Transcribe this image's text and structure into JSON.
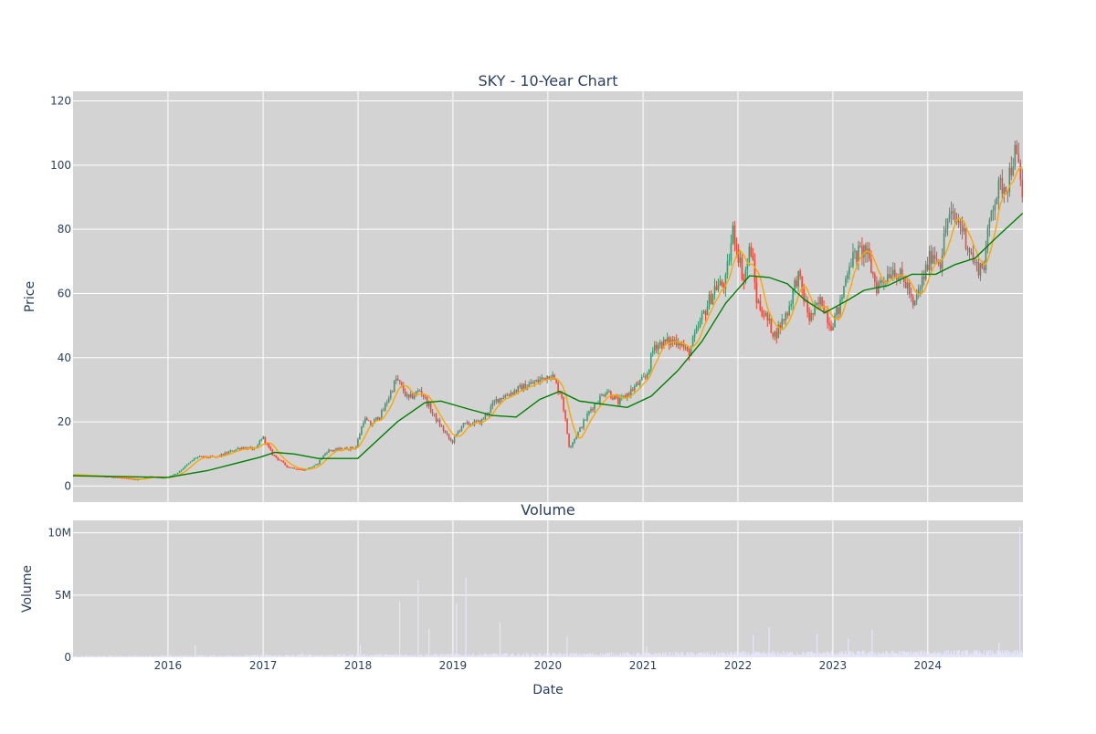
{
  "chart_data": [
    {
      "type": "candlestick",
      "title": "SKY - 10-Year Chart",
      "ylabel": "Price",
      "ylim": [
        -5,
        123
      ],
      "yticks": [
        0,
        20,
        40,
        60,
        80,
        100,
        120
      ],
      "grid": true,
      "background": "#d3d3d3",
      "colors": {
        "up": "#3d9970",
        "down": "#ff4136",
        "short_ma": "#ffa500",
        "long_ma": "#008000"
      },
      "price_path": [
        [
          "2015-01-01",
          3.5
        ],
        [
          "2015-06-01",
          2.8
        ],
        [
          "2015-09-01",
          2.0
        ],
        [
          "2015-10-20",
          3.0
        ],
        [
          "2015-12-15",
          2.5
        ],
        [
          "2016-02-01",
          4.0
        ],
        [
          "2016-04-15",
          9.0
        ],
        [
          "2016-07-01",
          9.0
        ],
        [
          "2016-10-01",
          12.0
        ],
        [
          "2016-12-01",
          11.5
        ],
        [
          "2016-12-25",
          15.5
        ],
        [
          "2017-02-01",
          10.0
        ],
        [
          "2017-04-01",
          6.0
        ],
        [
          "2017-06-01",
          5.0
        ],
        [
          "2017-07-20",
          6.5
        ],
        [
          "2017-09-01",
          11.0
        ],
        [
          "2017-12-20",
          12.0
        ],
        [
          "2018-01-20",
          21.0
        ],
        [
          "2018-02-15",
          19.0
        ],
        [
          "2018-04-01",
          23.0
        ],
        [
          "2018-05-25",
          33.5
        ],
        [
          "2018-07-10",
          27.0
        ],
        [
          "2018-08-25",
          30.0
        ],
        [
          "2018-10-15",
          22.0
        ],
        [
          "2018-12-24",
          13.5
        ],
        [
          "2019-02-01",
          19.0
        ],
        [
          "2019-04-15",
          20.0
        ],
        [
          "2019-06-15",
          27.0
        ],
        [
          "2019-09-01",
          30.0
        ],
        [
          "2019-11-15",
          32.5
        ],
        [
          "2020-01-10",
          35.0
        ],
        [
          "2020-02-20",
          28.0
        ],
        [
          "2020-03-20",
          12.0
        ],
        [
          "2020-04-25",
          17.0
        ],
        [
          "2020-06-10",
          24.0
        ],
        [
          "2020-08-10",
          30.0
        ],
        [
          "2020-09-25",
          26.0
        ],
        [
          "2020-11-15",
          30.0
        ],
        [
          "2021-01-10",
          34.0
        ],
        [
          "2021-02-10",
          44.0
        ],
        [
          "2021-05-15",
          45.5
        ],
        [
          "2021-06-20",
          41.0
        ],
        [
          "2021-08-15",
          53.0
        ],
        [
          "2021-10-01",
          62.0
        ],
        [
          "2021-11-10",
          63.0
        ],
        [
          "2021-12-10",
          80.0
        ],
        [
          "2022-01-20",
          64.0
        ],
        [
          "2022-02-15",
          75.0
        ],
        [
          "2022-03-10",
          58.0
        ],
        [
          "2022-05-20",
          47.0
        ],
        [
          "2022-07-10",
          55.0
        ],
        [
          "2022-08-15",
          66.0
        ],
        [
          "2022-09-30",
          52.0
        ],
        [
          "2022-11-15",
          58.0
        ],
        [
          "2022-12-20",
          50.0
        ],
        [
          "2023-01-25",
          56.0
        ],
        [
          "2023-03-01",
          70.0
        ],
        [
          "2023-05-01",
          74.0
        ],
        [
          "2023-06-15",
          62.0
        ],
        [
          "2023-08-15",
          68.0
        ],
        [
          "2023-10-15",
          62.0
        ],
        [
          "2023-11-01",
          55.0
        ],
        [
          "2023-12-20",
          67.0
        ],
        [
          "2024-01-15",
          73.0
        ],
        [
          "2024-02-15",
          70.0
        ],
        [
          "2024-03-15",
          84.0
        ],
        [
          "2024-05-01",
          82.0
        ],
        [
          "2024-07-01",
          68.0
        ],
        [
          "2024-08-01",
          69.0
        ],
        [
          "2024-09-01",
          88.0
        ],
        [
          "2024-10-01",
          93.0
        ],
        [
          "2024-11-01",
          95.0
        ],
        [
          "2024-11-25",
          104.0
        ],
        [
          "2024-12-10",
          100.0
        ],
        [
          "2024-12-31",
          88.0
        ]
      ],
      "long_ma_path": [
        [
          "2015-01-01",
          3.2
        ],
        [
          "2015-12-31",
          2.7
        ],
        [
          "2016-06-01",
          4.8
        ],
        [
          "2016-12-20",
          9.0
        ],
        [
          "2017-02-15",
          10.5
        ],
        [
          "2017-05-01",
          10.0
        ],
        [
          "2017-08-01",
          8.6
        ],
        [
          "2017-12-31",
          8.6
        ],
        [
          "2018-06-01",
          20.0
        ],
        [
          "2018-09-15",
          26.0
        ],
        [
          "2018-11-15",
          26.5
        ],
        [
          "2019-03-01",
          24.0
        ],
        [
          "2019-06-01",
          22.0
        ],
        [
          "2019-09-01",
          21.5
        ],
        [
          "2019-12-01",
          27.0
        ],
        [
          "2020-02-15",
          29.5
        ],
        [
          "2020-05-01",
          26.5
        ],
        [
          "2020-08-01",
          25.5
        ],
        [
          "2020-11-01",
          24.5
        ],
        [
          "2021-02-01",
          28.0
        ],
        [
          "2021-05-15",
          36.0
        ],
        [
          "2021-08-15",
          45.0
        ],
        [
          "2021-11-15",
          57.0
        ],
        [
          "2022-02-15",
          65.5
        ],
        [
          "2022-05-01",
          65.0
        ],
        [
          "2022-07-10",
          63.0
        ],
        [
          "2022-09-15",
          58.0
        ],
        [
          "2022-12-01",
          54.0
        ],
        [
          "2023-03-01",
          58.0
        ],
        [
          "2023-05-01",
          61.0
        ],
        [
          "2023-08-01",
          62.5
        ],
        [
          "2023-11-01",
          66.0
        ],
        [
          "2024-02-01",
          66.0
        ],
        [
          "2024-04-15",
          69.0
        ],
        [
          "2024-07-01",
          71.0
        ],
        [
          "2024-09-15",
          77.0
        ],
        [
          "2024-12-31",
          85.0
        ]
      ]
    },
    {
      "type": "bar",
      "title": "Volume",
      "xlabel": "Date",
      "ylabel": "Volume",
      "ylim": [
        0,
        11000000
      ],
      "yticks": [
        0,
        5000000,
        10000000
      ],
      "ytick_labels": [
        "0",
        "5M",
        "10M"
      ],
      "xlim": [
        "2015-01-01",
        "2025-01-01"
      ],
      "xticks": [
        "2016-01-01",
        "2017-01-01",
        "2018-01-01",
        "2019-01-01",
        "2020-01-01",
        "2021-01-01",
        "2022-01-01",
        "2023-01-01",
        "2024-01-01"
      ],
      "xtick_labels": [
        "2016",
        "2017",
        "2018",
        "2019",
        "2020",
        "2021",
        "2022",
        "2023",
        "2024"
      ],
      "grid": true,
      "background": "#d3d3d3",
      "bar_color": "#e6e6fa",
      "typical_volume": 300000,
      "spikes": [
        [
          "2016-04-15",
          1000000
        ],
        [
          "2017-06-01",
          400000
        ],
        [
          "2018-01-10",
          1000000
        ],
        [
          "2018-06-10",
          4500000
        ],
        [
          "2018-08-20",
          6200000
        ],
        [
          "2018-10-01",
          2300000
        ],
        [
          "2019-01-15",
          4300000
        ],
        [
          "2019-02-20",
          6400000
        ],
        [
          "2019-07-01",
          2800000
        ],
        [
          "2020-03-15",
          1700000
        ],
        [
          "2021-01-15",
          900000
        ],
        [
          "2022-03-01",
          1800000
        ],
        [
          "2022-05-01",
          2400000
        ],
        [
          "2022-11-01",
          1900000
        ],
        [
          "2023-03-01",
          1500000
        ],
        [
          "2023-06-01",
          2200000
        ],
        [
          "2024-10-01",
          1200000
        ],
        [
          "2024-12-20",
          10500000
        ]
      ]
    }
  ]
}
